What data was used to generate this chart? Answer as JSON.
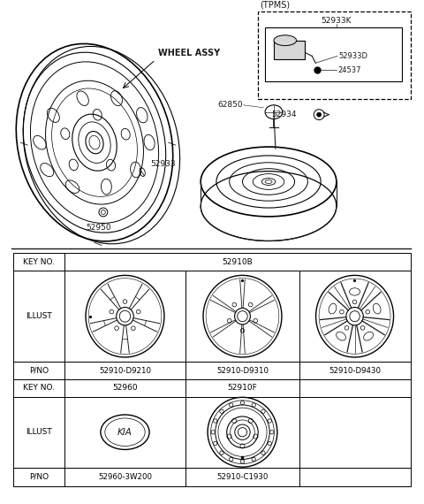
{
  "bg_color": "#ffffff",
  "line_color": "#1a1a1a",
  "table": {
    "row1_key": "KEY NO.",
    "row1_val": "52910B",
    "row2_label": "ILLUST",
    "row3_label": "P/NO",
    "col1_pno": "52910-D9210",
    "col2_pno": "52910-D9310",
    "col3_pno": "52910-D9430",
    "row4_key": "KEY NO.",
    "row4_col1": "52960",
    "row4_col2": "52910F",
    "row5_label": "ILLUST",
    "row6_label": "P/NO",
    "row6_col1": "52960-3W200",
    "row6_col2": "52910-C1930"
  },
  "labels": {
    "wheel_assy": "WHEEL ASSY",
    "p62850": "62850",
    "p52933": "52933",
    "p52950": "52950",
    "p52933k": "52933K",
    "p52933d": "52933D",
    "p24537": "24537",
    "p52934": "52934",
    "tpms": "(TPMS)"
  }
}
